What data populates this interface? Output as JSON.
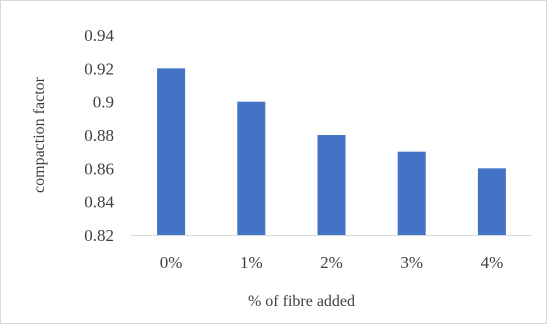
{
  "chart_data": {
    "type": "bar",
    "categories": [
      "0%",
      "1%",
      "2%",
      "3%",
      "4%"
    ],
    "values": [
      0.92,
      0.9,
      0.88,
      0.87,
      0.86
    ],
    "ylim": [
      0.82,
      0.94
    ],
    "yticks": [
      "0.82",
      "0.84",
      "0.86",
      "0.88",
      "0.9",
      "0.92",
      "0.94"
    ],
    "xlabel": "% of fibre added",
    "ylabel": "compaction factor",
    "grid": false,
    "legend": "none",
    "bar_color": "#4472c4",
    "axis_color": "#d9d9d9",
    "text_color": "#404040"
  }
}
